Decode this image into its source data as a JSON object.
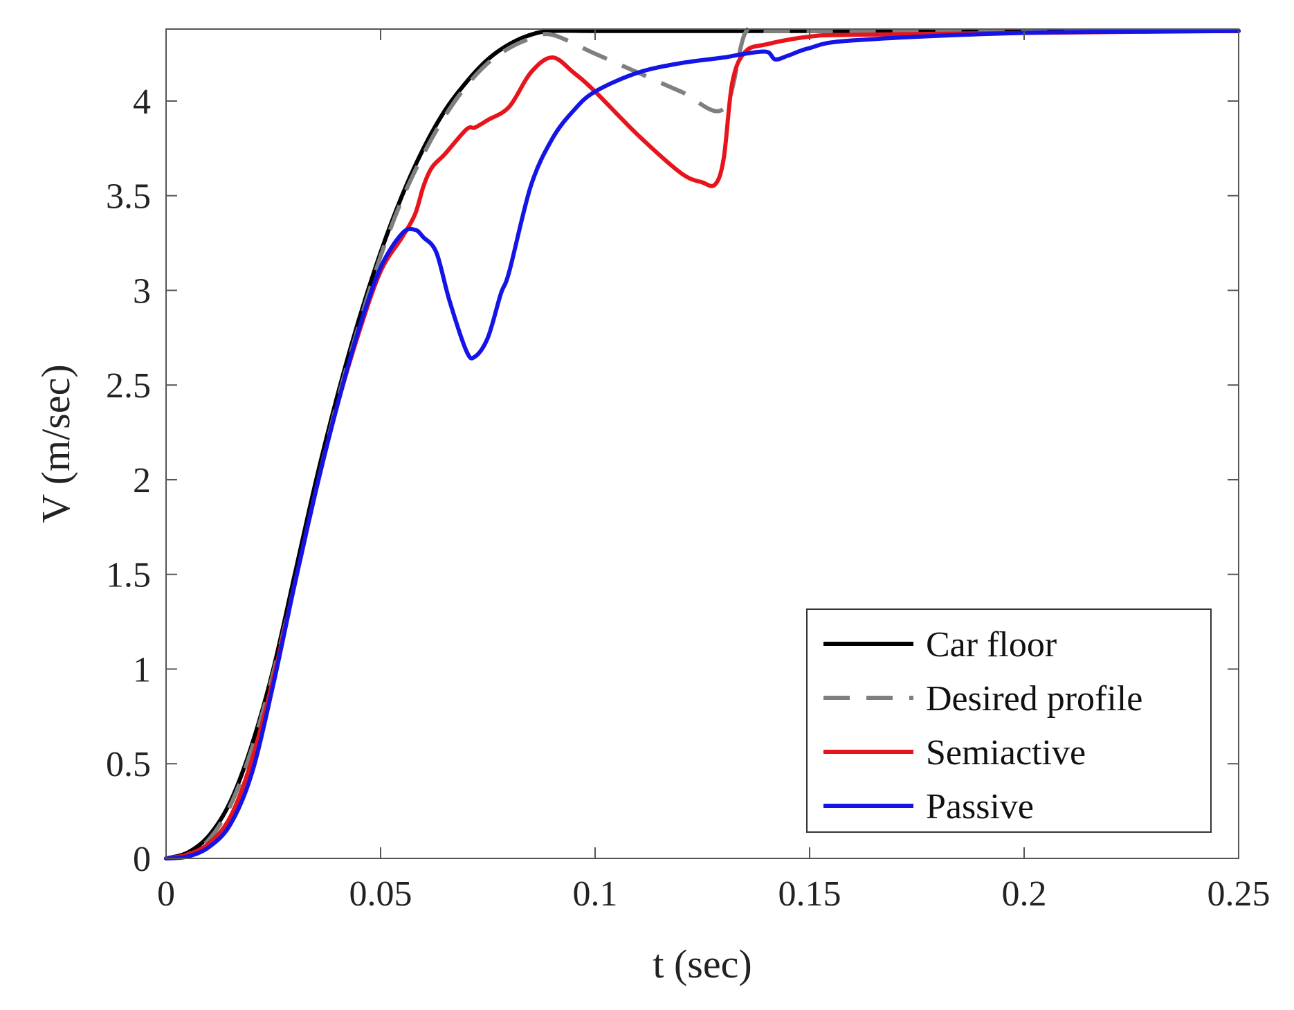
{
  "chart_data": {
    "type": "line",
    "title": "",
    "xlabel": "t (sec)",
    "ylabel": "V (m/sec)",
    "xlim": [
      0,
      0.25
    ],
    "ylim": [
      0,
      4.38
    ],
    "xticks": [
      0,
      0.05,
      0.1,
      0.15,
      0.2,
      0.25
    ],
    "xtick_labels": [
      "0",
      "0.05",
      "0.1",
      "0.15",
      "0.2",
      "0.25"
    ],
    "yticks": [
      0,
      0.5,
      1,
      1.5,
      2,
      2.5,
      3,
      3.5,
      4
    ],
    "ytick_labels": [
      "0",
      "0.5",
      "1",
      "1.5",
      "2",
      "2.5",
      "3",
      "3.5",
      "4"
    ],
    "grid": false,
    "legend_position": "bottom-right",
    "series": [
      {
        "name": "Car floor",
        "color": "#000000",
        "dash": "solid",
        "x": [
          0,
          0.005,
          0.01,
          0.015,
          0.02,
          0.025,
          0.03,
          0.035,
          0.04,
          0.045,
          0.05,
          0.055,
          0.06,
          0.065,
          0.07,
          0.075,
          0.08,
          0.085,
          0.09,
          0.1,
          0.12,
          0.15,
          0.2,
          0.25
        ],
        "y": [
          0,
          0.03,
          0.12,
          0.3,
          0.6,
          1.0,
          1.5,
          2.0,
          2.45,
          2.85,
          3.2,
          3.5,
          3.75,
          3.95,
          4.1,
          4.22,
          4.3,
          4.35,
          4.37,
          4.37,
          4.37,
          4.37,
          4.37,
          4.37
        ]
      },
      {
        "name": "Desired profile",
        "color": "#7f7f7f",
        "dash": "dashed",
        "x": [
          0,
          0.005,
          0.01,
          0.015,
          0.02,
          0.025,
          0.03,
          0.035,
          0.04,
          0.045,
          0.05,
          0.055,
          0.06,
          0.065,
          0.07,
          0.075,
          0.08,
          0.085,
          0.09,
          0.1,
          0.11,
          0.12,
          0.13,
          0.135,
          0.14,
          0.15,
          0.2,
          0.25
        ],
        "y": [
          0,
          0.02,
          0.1,
          0.28,
          0.58,
          0.98,
          1.45,
          1.95,
          2.42,
          2.82,
          3.18,
          3.48,
          3.72,
          3.92,
          4.08,
          4.2,
          4.28,
          4.33,
          4.35,
          4.25,
          4.15,
          4.05,
          3.96,
          4.36,
          4.37,
          4.37,
          4.37,
          4.37
        ]
      },
      {
        "name": "Semiactive",
        "color": "#e8141c",
        "dash": "solid",
        "x": [
          0,
          0.005,
          0.01,
          0.015,
          0.02,
          0.025,
          0.03,
          0.035,
          0.04,
          0.045,
          0.05,
          0.055,
          0.058,
          0.06,
          0.062,
          0.065,
          0.07,
          0.072,
          0.075,
          0.08,
          0.085,
          0.09,
          0.095,
          0.1,
          0.11,
          0.12,
          0.125,
          0.128,
          0.13,
          0.132,
          0.135,
          0.14,
          0.15,
          0.16,
          0.2,
          0.25
        ],
        "y": [
          0,
          0.02,
          0.08,
          0.22,
          0.52,
          0.95,
          1.45,
          1.95,
          2.4,
          2.78,
          3.1,
          3.28,
          3.4,
          3.55,
          3.65,
          3.72,
          3.85,
          3.86,
          3.9,
          3.97,
          4.15,
          4.23,
          4.15,
          4.05,
          3.82,
          3.62,
          3.57,
          3.56,
          3.7,
          4.1,
          4.26,
          4.3,
          4.34,
          4.35,
          4.36,
          4.37
        ]
      },
      {
        "name": "Passive",
        "color": "#1414e6",
        "dash": "solid",
        "x": [
          0,
          0.005,
          0.01,
          0.015,
          0.02,
          0.025,
          0.03,
          0.035,
          0.04,
          0.045,
          0.05,
          0.055,
          0.058,
          0.06,
          0.063,
          0.066,
          0.07,
          0.072,
          0.075,
          0.078,
          0.08,
          0.085,
          0.09,
          0.095,
          0.1,
          0.11,
          0.12,
          0.13,
          0.135,
          0.14,
          0.142,
          0.145,
          0.15,
          0.16,
          0.2,
          0.25
        ],
        "y": [
          0,
          0.01,
          0.06,
          0.18,
          0.45,
          0.92,
          1.45,
          1.95,
          2.4,
          2.8,
          3.12,
          3.3,
          3.32,
          3.28,
          3.2,
          2.95,
          2.68,
          2.65,
          2.75,
          2.98,
          3.1,
          3.55,
          3.8,
          3.95,
          4.05,
          4.15,
          4.2,
          4.23,
          4.25,
          4.26,
          4.22,
          4.24,
          4.28,
          4.32,
          4.36,
          4.37
        ]
      }
    ]
  }
}
